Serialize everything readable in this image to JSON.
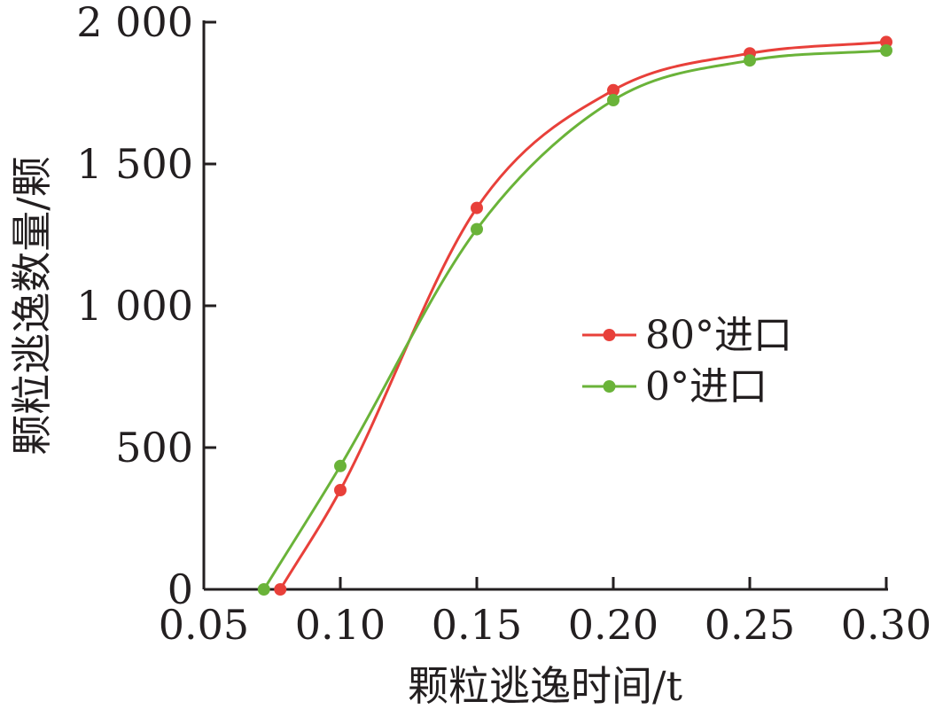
{
  "chart_data": {
    "type": "line",
    "xlabel": "颗粒逃逸时间/t",
    "ylabel": "颗粒逃逸数量/颗",
    "xlim": [
      0.05,
      0.3
    ],
    "ylim": [
      0,
      2000
    ],
    "x_ticks": [
      "0.05",
      "0.10",
      "0.15",
      "0.20",
      "0.25",
      "0.30"
    ],
    "x_tick_values": [
      0.05,
      0.1,
      0.15,
      0.2,
      0.25,
      0.3
    ],
    "y_ticks": [
      "0",
      "500",
      "1 000",
      "1 500",
      "2 000"
    ],
    "y_tick_values": [
      0,
      500,
      1000,
      1500,
      2000
    ],
    "grid": false,
    "legend_position": "right-center",
    "series": [
      {
        "name": "80°进口",
        "color": "#e8403a",
        "x": [
          0.078,
          0.1,
          0.15,
          0.2,
          0.25,
          0.3
        ],
        "y": [
          0,
          350,
          1345,
          1760,
          1890,
          1930
        ]
      },
      {
        "name": "0°进口",
        "color": "#6ab339",
        "x": [
          0.072,
          0.1,
          0.15,
          0.2,
          0.25,
          0.3
        ],
        "y": [
          0,
          435,
          1270,
          1725,
          1865,
          1900
        ]
      }
    ]
  }
}
